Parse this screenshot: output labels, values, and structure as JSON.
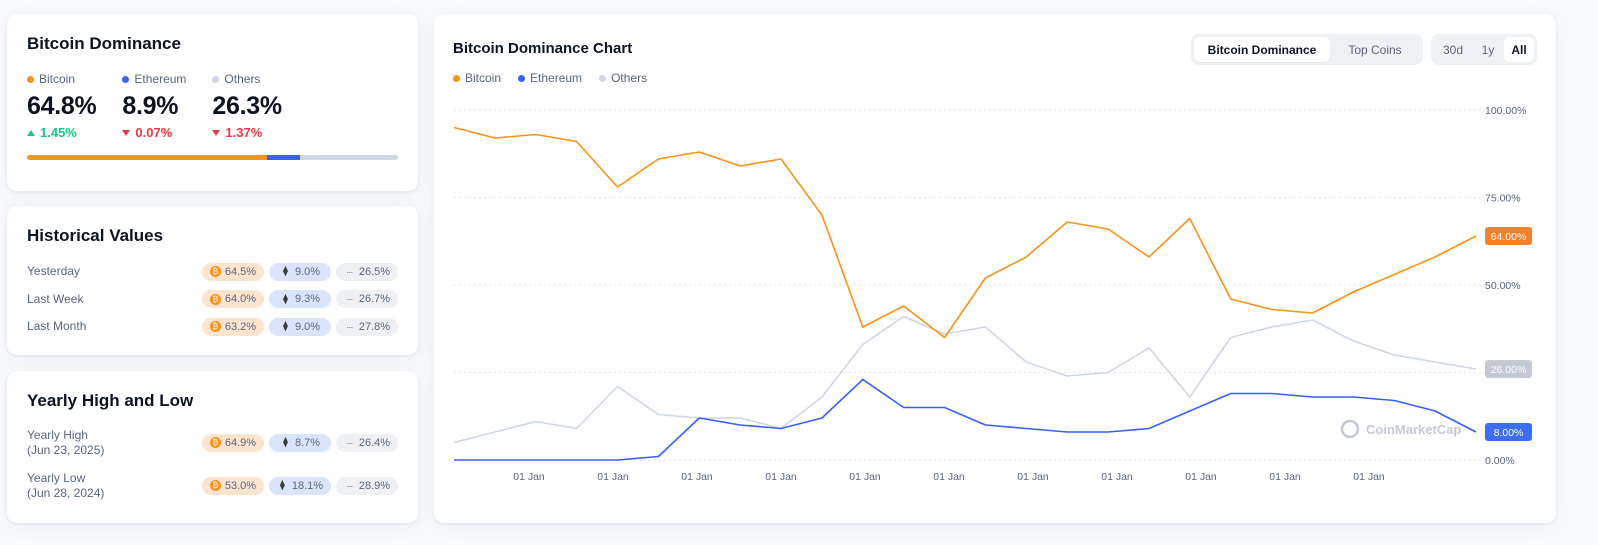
{
  "dominance": {
    "title": "Bitcoin Dominance",
    "items": [
      {
        "label": "Bitcoin",
        "value": "64.8%",
        "change": "1.45%",
        "direction": "up",
        "color": "#f7931a",
        "share": 64.8
      },
      {
        "label": "Ethereum",
        "value": "8.9%",
        "change": "0.07%",
        "direction": "down",
        "color": "#3861fb",
        "share": 8.9
      },
      {
        "label": "Others",
        "value": "26.3%",
        "change": "1.37%",
        "direction": "down",
        "color": "#cfd6e4",
        "share": 26.3
      }
    ]
  },
  "historical": {
    "title": "Historical Values",
    "rows": [
      {
        "label": "Yesterday",
        "btc": "64.5%",
        "eth": "9.0%",
        "others": "26.5%"
      },
      {
        "label": "Last Week",
        "btc": "64.0%",
        "eth": "9.3%",
        "others": "26.7%"
      },
      {
        "label": "Last Month",
        "btc": "63.2%",
        "eth": "9.0%",
        "others": "27.8%"
      }
    ]
  },
  "yearly": {
    "title": "Yearly High and Low",
    "rows": [
      {
        "label": "Yearly High",
        "date": "(Jun 23, 2025)",
        "btc": "64.9%",
        "eth": "8.7%",
        "others": "26.4%"
      },
      {
        "label": "Yearly Low",
        "date": "(Jun 28, 2024)",
        "btc": "53.0%",
        "eth": "18.1%",
        "others": "28.9%"
      }
    ]
  },
  "chart_panel": {
    "title": "Bitcoin Dominance Chart",
    "tabs": [
      "Bitcoin Dominance",
      "Top Coins"
    ],
    "active_tab": "Bitcoin Dominance",
    "ranges": [
      "30d",
      "1y",
      "All"
    ],
    "active_range": "All",
    "watermark": "CoinMarketCap"
  },
  "chart_data": {
    "type": "line",
    "title": "",
    "xlabel": "",
    "ylabel": "",
    "ylim": [
      0,
      100
    ],
    "y_ticks": [
      "0.00%",
      "25.00%",
      "50.00%",
      "75.00%",
      "100.00%"
    ],
    "x_ticks": [
      "01 Jan",
      "01 Jan",
      "01 Jan",
      "01 Jan",
      "01 Jan",
      "01 Jan",
      "01 Jan",
      "01 Jan",
      "01 Jan",
      "01 Jan",
      "01 Jan"
    ],
    "grid": true,
    "legend_position": "top-left",
    "x": [
      0,
      0.5,
      1,
      1.5,
      2,
      2.5,
      3,
      3.5,
      4,
      4.5,
      5,
      5.5,
      6,
      6.5,
      7,
      7.5,
      8,
      8.5,
      9,
      9.5,
      10,
      10.5,
      11,
      11.5,
      12,
      12.5
    ],
    "series": [
      {
        "name": "Bitcoin",
        "color": "#f7931a",
        "end_label": "64.00%",
        "values": [
          95,
          92,
          93,
          91,
          78,
          86,
          88,
          84,
          86,
          70,
          38,
          44,
          35,
          52,
          58,
          68,
          66,
          58,
          69,
          46,
          43,
          42,
          48,
          53,
          58,
          64
        ]
      },
      {
        "name": "Ethereum",
        "color": "#3861fb",
        "end_label": "8.00%",
        "values": [
          0,
          0,
          0,
          0,
          0,
          1,
          12,
          10,
          9,
          12,
          23,
          15,
          15,
          10,
          9,
          8,
          8,
          9,
          14,
          19,
          19,
          18,
          18,
          17,
          14,
          8
        ]
      },
      {
        "name": "Others",
        "color": "#cfd6e4",
        "end_label": "26.00%",
        "values": [
          5,
          8,
          11,
          9,
          21,
          13,
          12,
          12,
          9,
          18,
          33,
          41,
          36,
          38,
          28,
          24,
          25,
          32,
          18,
          35,
          38,
          40,
          34,
          30,
          28,
          26
        ]
      }
    ]
  }
}
